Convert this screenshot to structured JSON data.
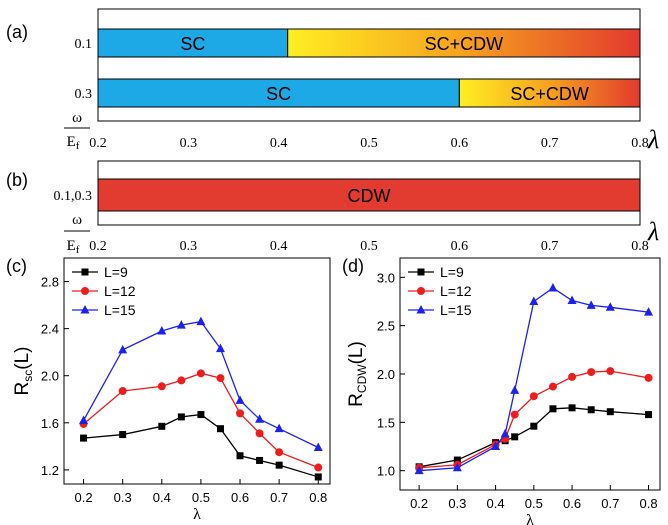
{
  "panel_labels": {
    "a": "(a)",
    "b": "(b)",
    "c": "(c)",
    "d": "(d)"
  },
  "omega_label": {
    "num": "ω",
    "den": "E",
    "den_sub": "f"
  },
  "lambda_symbol": "λ",
  "colors": {
    "sc": "#1ca9e6",
    "grad_start": "#ffee22",
    "grad_mid": "#f6a21e",
    "grad_end": "#e23a2e",
    "cdw": "#e23b30",
    "series": [
      "#000000",
      "#ee1c1c",
      "#1c22ee"
    ]
  },
  "chart_data": [
    {
      "id": "a",
      "type": "bar",
      "orientation": "horizontal",
      "xlim": [
        0.2,
        0.8
      ],
      "x_ticks": [
        "0.2",
        "0.3",
        "0.4",
        "0.5",
        "0.6",
        "0.7",
        "0.8"
      ],
      "xlabel": "λ",
      "ylabel": "ω/Ef",
      "rows": [
        {
          "label": "0.1",
          "segments": [
            {
              "from": 0.2,
              "to": 0.41,
              "phase": "SC"
            },
            {
              "from": 0.41,
              "to": 0.8,
              "phase": "SC+CDW"
            }
          ]
        },
        {
          "label": "0.3",
          "segments": [
            {
              "from": 0.2,
              "to": 0.6,
              "phase": "SC"
            },
            {
              "from": 0.6,
              "to": 0.8,
              "phase": "SC+CDW"
            }
          ]
        }
      ]
    },
    {
      "id": "b",
      "type": "bar",
      "orientation": "horizontal",
      "xlim": [
        0.2,
        0.8
      ],
      "x_ticks": [
        "0.2",
        "0.3",
        "0.4",
        "0.5",
        "0.6",
        "0.7",
        "0.8"
      ],
      "xlabel": "λ",
      "ylabel": "ω/Ef",
      "rows": [
        {
          "label": "0.1,0.3",
          "segments": [
            {
              "from": 0.2,
              "to": 0.8,
              "phase": "CDW"
            }
          ]
        }
      ]
    },
    {
      "id": "c",
      "type": "line",
      "xlabel": "λ",
      "ylabel": "R",
      "ylabel_sub": "sc",
      "ylabel_suffix": "(L)",
      "xlim": [
        0.15,
        0.83
      ],
      "ylim": [
        1.08,
        3.0
      ],
      "x_ticks": [
        "0.2",
        "0.3",
        "0.4",
        "0.5",
        "0.6",
        "0.7",
        "0.8"
      ],
      "y_ticks": [
        "1.2",
        "1.6",
        "2.0",
        "2.4",
        "2.8"
      ],
      "x": [
        0.2,
        0.3,
        0.4,
        0.45,
        0.5,
        0.55,
        0.6,
        0.65,
        0.7,
        0.8
      ],
      "series": [
        {
          "name": "L=9",
          "marker": "square",
          "values": [
            1.47,
            1.5,
            1.57,
            1.65,
            1.67,
            1.55,
            1.32,
            1.28,
            1.24,
            1.14
          ]
        },
        {
          "name": "L=12",
          "marker": "circle",
          "values": [
            1.59,
            1.87,
            1.91,
            1.96,
            2.02,
            1.98,
            1.68,
            1.51,
            1.35,
            1.22
          ]
        },
        {
          "name": "L=15",
          "marker": "triangle",
          "values": [
            1.62,
            2.22,
            2.38,
            2.43,
            2.46,
            2.23,
            1.79,
            1.63,
            1.55,
            1.39
          ]
        }
      ],
      "legend": "top-left"
    },
    {
      "id": "d",
      "type": "line",
      "xlabel": "λ",
      "ylabel": "R",
      "ylabel_sub": "CDW",
      "ylabel_suffix": "(L)",
      "xlim": [
        0.15,
        0.83
      ],
      "ylim": [
        0.8,
        3.2
      ],
      "x_ticks": [
        "0.2",
        "0.3",
        "0.4",
        "0.5",
        "0.6",
        "0.7",
        "0.8"
      ],
      "y_ticks": [
        "1.0",
        "1.5",
        "2.0",
        "2.5",
        "3.0"
      ],
      "x": [
        0.2,
        0.3,
        0.4,
        0.425,
        0.45,
        0.5,
        0.55,
        0.6,
        0.65,
        0.7,
        0.8
      ],
      "series": [
        {
          "name": "L=9",
          "marker": "square",
          "values": [
            1.04,
            1.11,
            1.29,
            1.31,
            1.35,
            1.46,
            1.64,
            1.65,
            1.63,
            1.61,
            1.58
          ]
        },
        {
          "name": "L=12",
          "marker": "circle",
          "values": [
            1.03,
            1.06,
            1.27,
            1.33,
            1.58,
            1.77,
            1.87,
            1.97,
            2.02,
            2.03,
            1.96
          ]
        },
        {
          "name": "L=15",
          "marker": "triangle",
          "values": [
            1.0,
            1.03,
            1.25,
            1.38,
            1.83,
            2.75,
            2.89,
            2.76,
            2.71,
            2.69,
            2.64
          ]
        }
      ],
      "legend": "top-left"
    }
  ]
}
